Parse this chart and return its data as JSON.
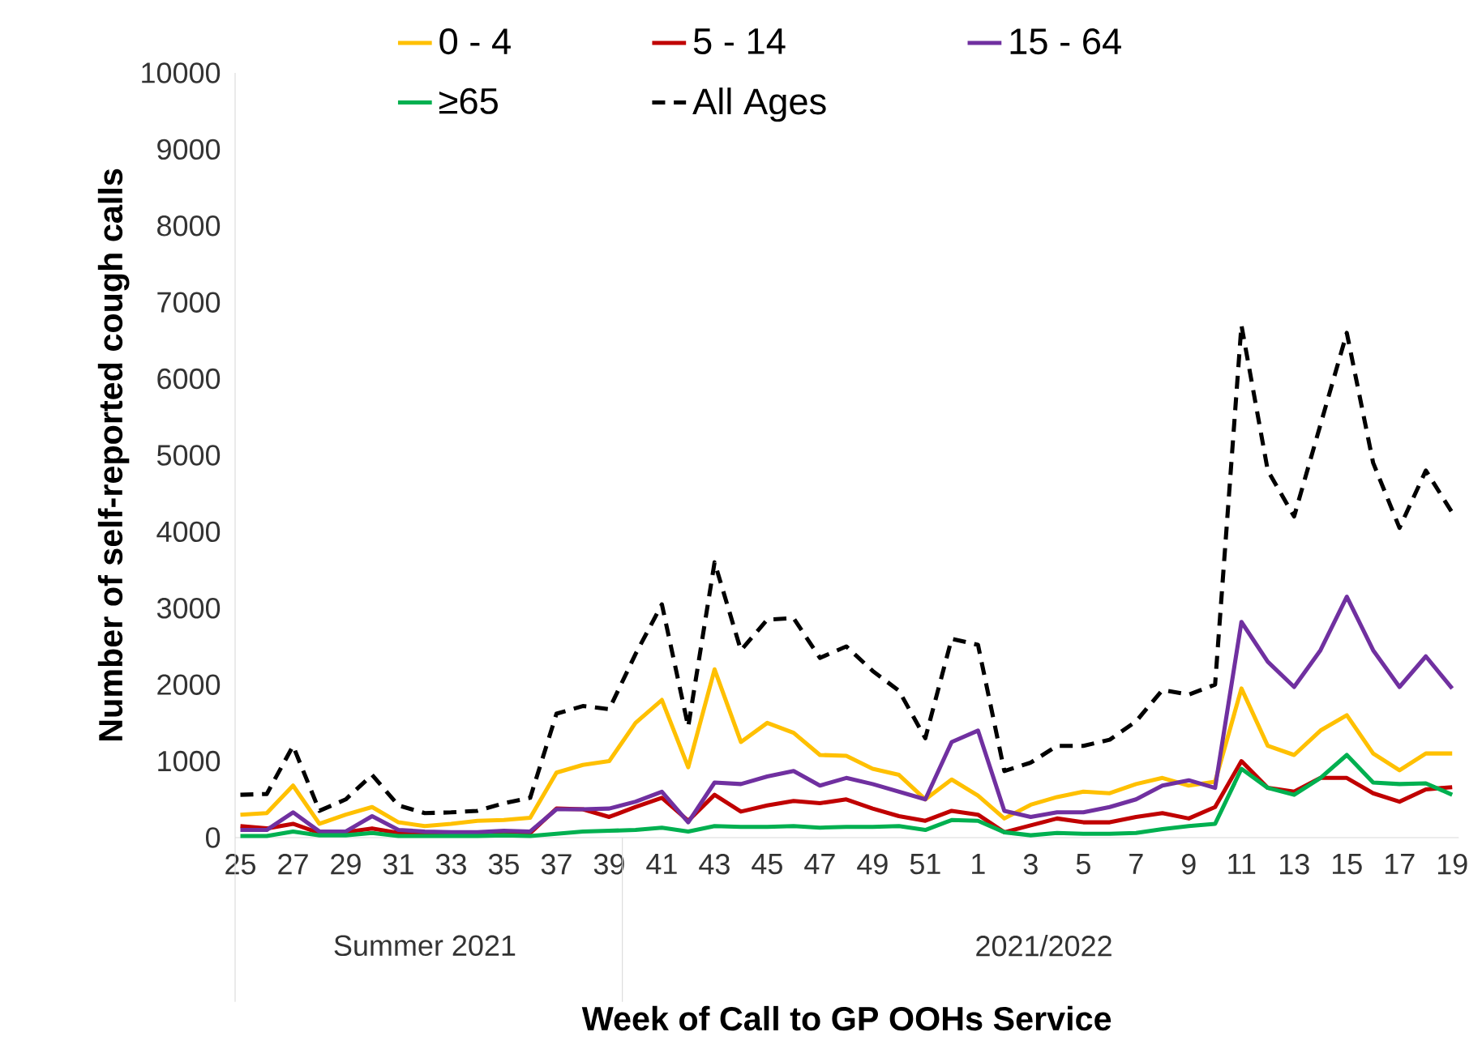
{
  "chart_data": {
    "type": "line",
    "xlabel": "Week of Call to GP OOHs Service",
    "ylabel": "Number of self-reported cough calls",
    "categories": [
      "25",
      null,
      "27",
      null,
      "29",
      null,
      "31",
      null,
      "33",
      null,
      "35",
      null,
      "37",
      null,
      "39",
      null,
      "41",
      null,
      "43",
      null,
      "45",
      null,
      "47",
      null,
      "49",
      null,
      "51",
      null,
      "1",
      null,
      "3",
      null,
      "5",
      null,
      "7",
      null,
      "9",
      null,
      "11",
      null,
      "13",
      null,
      "15",
      null,
      "17",
      null,
      "19"
    ],
    "series": [
      {
        "name": "0 - 4",
        "color": "#ffc000",
        "values": [
          300,
          320,
          680,
          180,
          300,
          400,
          200,
          150,
          180,
          220,
          230,
          260,
          850,
          950,
          1000,
          1500,
          1800,
          920,
          2200,
          1250,
          1500,
          1370,
          1080,
          1070,
          900,
          820,
          500,
          760,
          550,
          250,
          430,
          530,
          600,
          580,
          700,
          780,
          680,
          730,
          1950,
          1200,
          1080,
          1400,
          1600,
          1100,
          880,
          1100,
          1100
        ]
      },
      {
        "name": "5 - 14",
        "color": "#c00000",
        "values": [
          150,
          120,
          180,
          60,
          70,
          120,
          60,
          50,
          50,
          null,
          70,
          60,
          380,
          370,
          270,
          400,
          520,
          220,
          560,
          340,
          420,
          480,
          450,
          500,
          380,
          280,
          220,
          350,
          300,
          70,
          160,
          250,
          200,
          200,
          270,
          320,
          250,
          400,
          1000,
          650,
          600,
          780,
          780,
          580,
          470,
          630,
          660
        ]
      },
      {
        "name": "15 - 64",
        "color": "#7030a0",
        "values": [
          100,
          100,
          330,
          80,
          80,
          280,
          100,
          80,
          70,
          70,
          90,
          80,
          370,
          370,
          380,
          470,
          600,
          200,
          720,
          700,
          800,
          870,
          680,
          780,
          700,
          600,
          500,
          1250,
          1400,
          350,
          270,
          330,
          330,
          400,
          500,
          680,
          750,
          650,
          2820,
          2300,
          1970,
          2450,
          3150,
          2450,
          1970,
          2370,
          1950
        ]
      },
      {
        "name": "≥65",
        "color": "#00b050",
        "values": [
          20,
          20,
          80,
          30,
          30,
          60,
          20,
          20,
          20,
          20,
          30,
          20,
          50,
          80,
          90,
          100,
          130,
          80,
          150,
          140,
          140,
          150,
          130,
          140,
          140,
          150,
          100,
          230,
          220,
          70,
          30,
          60,
          50,
          50,
          60,
          110,
          150,
          180,
          900,
          650,
          560,
          780,
          1080,
          720,
          700,
          710,
          560
        ]
      },
      {
        "name": "All Ages",
        "color": "#000000",
        "line_style": "dashed",
        "values": [
          560,
          570,
          1200,
          350,
          500,
          820,
          420,
          320,
          330,
          350,
          450,
          520,
          1620,
          1720,
          1680,
          2400,
          3050,
          1450,
          3600,
          2450,
          2850,
          2870,
          2350,
          2500,
          2180,
          1920,
          1300,
          2600,
          2520,
          870,
          980,
          1200,
          1200,
          1280,
          1520,
          1930,
          1870,
          2000,
          6700,
          4800,
          4200,
          5400,
          6600,
          4900,
          4050,
          4800,
          4250
        ]
      }
    ],
    "ylim": [
      0,
      10000
    ],
    "yticks": [
      0,
      1000,
      2000,
      3000,
      4000,
      5000,
      6000,
      7000,
      8000,
      9000,
      10000
    ],
    "annotations": [
      "Summer 2021",
      "2021/2022"
    ],
    "legend": "top",
    "marker": "none",
    "grid": false
  }
}
